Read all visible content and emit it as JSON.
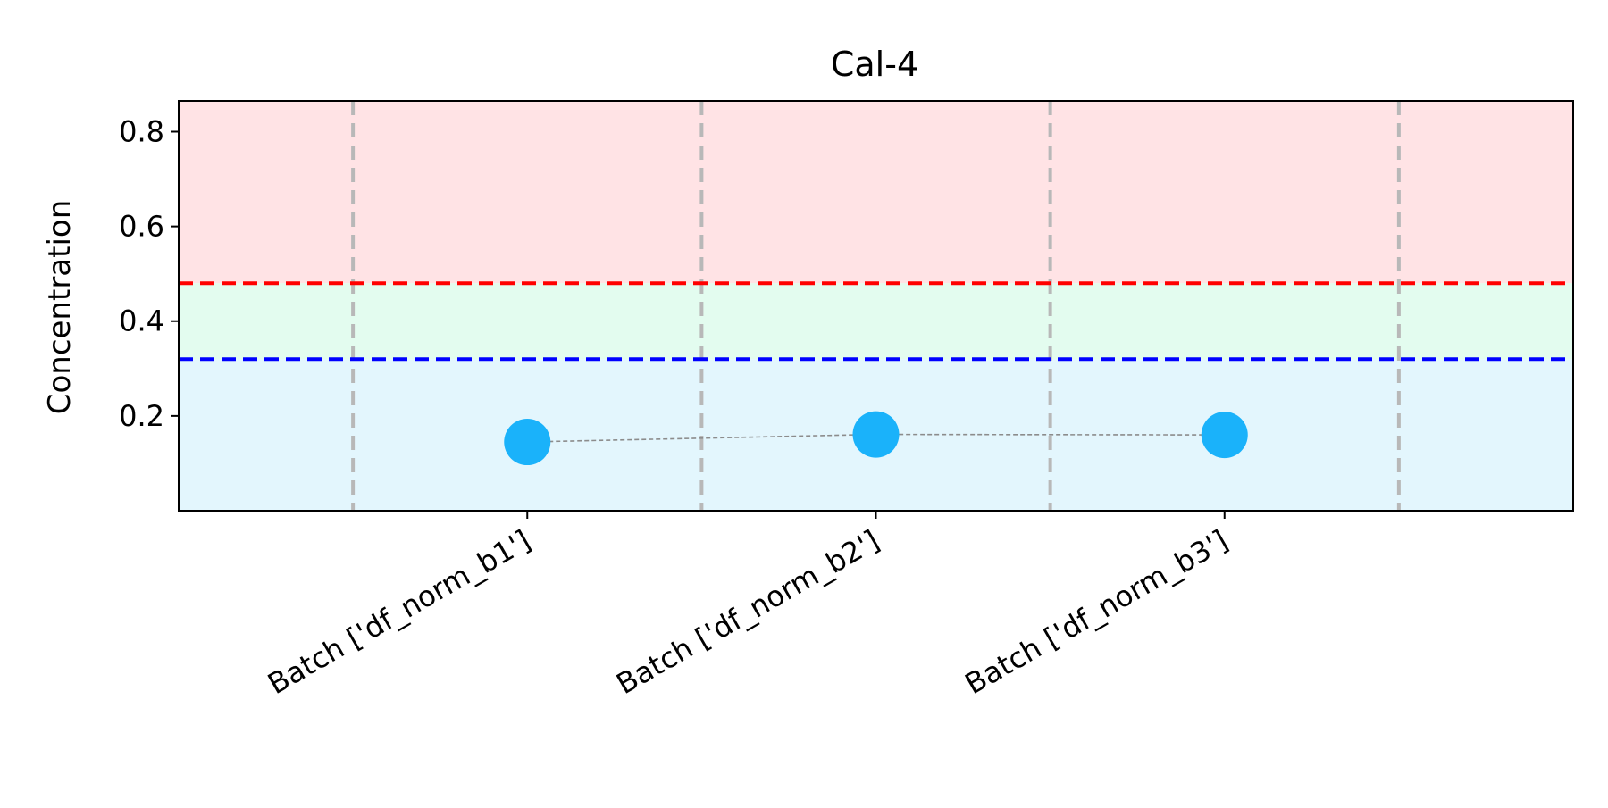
{
  "chart_data": {
    "type": "scatter",
    "title": "Cal-4",
    "xlabel": "",
    "ylabel": "Concentration",
    "categories": [
      "Batch ['df_norm_b1']",
      "Batch ['df_norm_b2']",
      "Batch ['df_norm_b3']"
    ],
    "series": [
      {
        "values": [
          0.145,
          0.161,
          0.16
        ],
        "color": "#1ab2fa",
        "line_color": "#8c8c8c",
        "line_style": "dashed"
      }
    ],
    "upper_limit": {
      "value": 0.48,
      "color": "#ff0000",
      "style": "dashed"
    },
    "lower_limit": {
      "value": 0.32,
      "color": "#0000ff",
      "style": "dashed"
    },
    "bands": [
      {
        "from": 0.48,
        "to": 0.865,
        "color": "#ffe3e5"
      },
      {
        "from": 0.32,
        "to": 0.48,
        "color": "#e3fcef"
      },
      {
        "from": 0.0,
        "to": 0.32,
        "color": "#e3f6fd"
      }
    ],
    "batch_separators_at": [
      -0.5,
      0.5,
      1.5,
      2.5
    ],
    "separator_color": "#b8b8b8",
    "yticks": [
      0.2,
      0.4,
      0.6,
      0.8
    ],
    "ytick_labels": [
      "0.2",
      "0.4",
      "0.6",
      "0.8"
    ],
    "ylim": [
      0.0,
      0.865
    ],
    "xlim": [
      -1.0,
      3.0
    ],
    "xtick_rotation": 30,
    "grid": false,
    "legend": "none"
  }
}
